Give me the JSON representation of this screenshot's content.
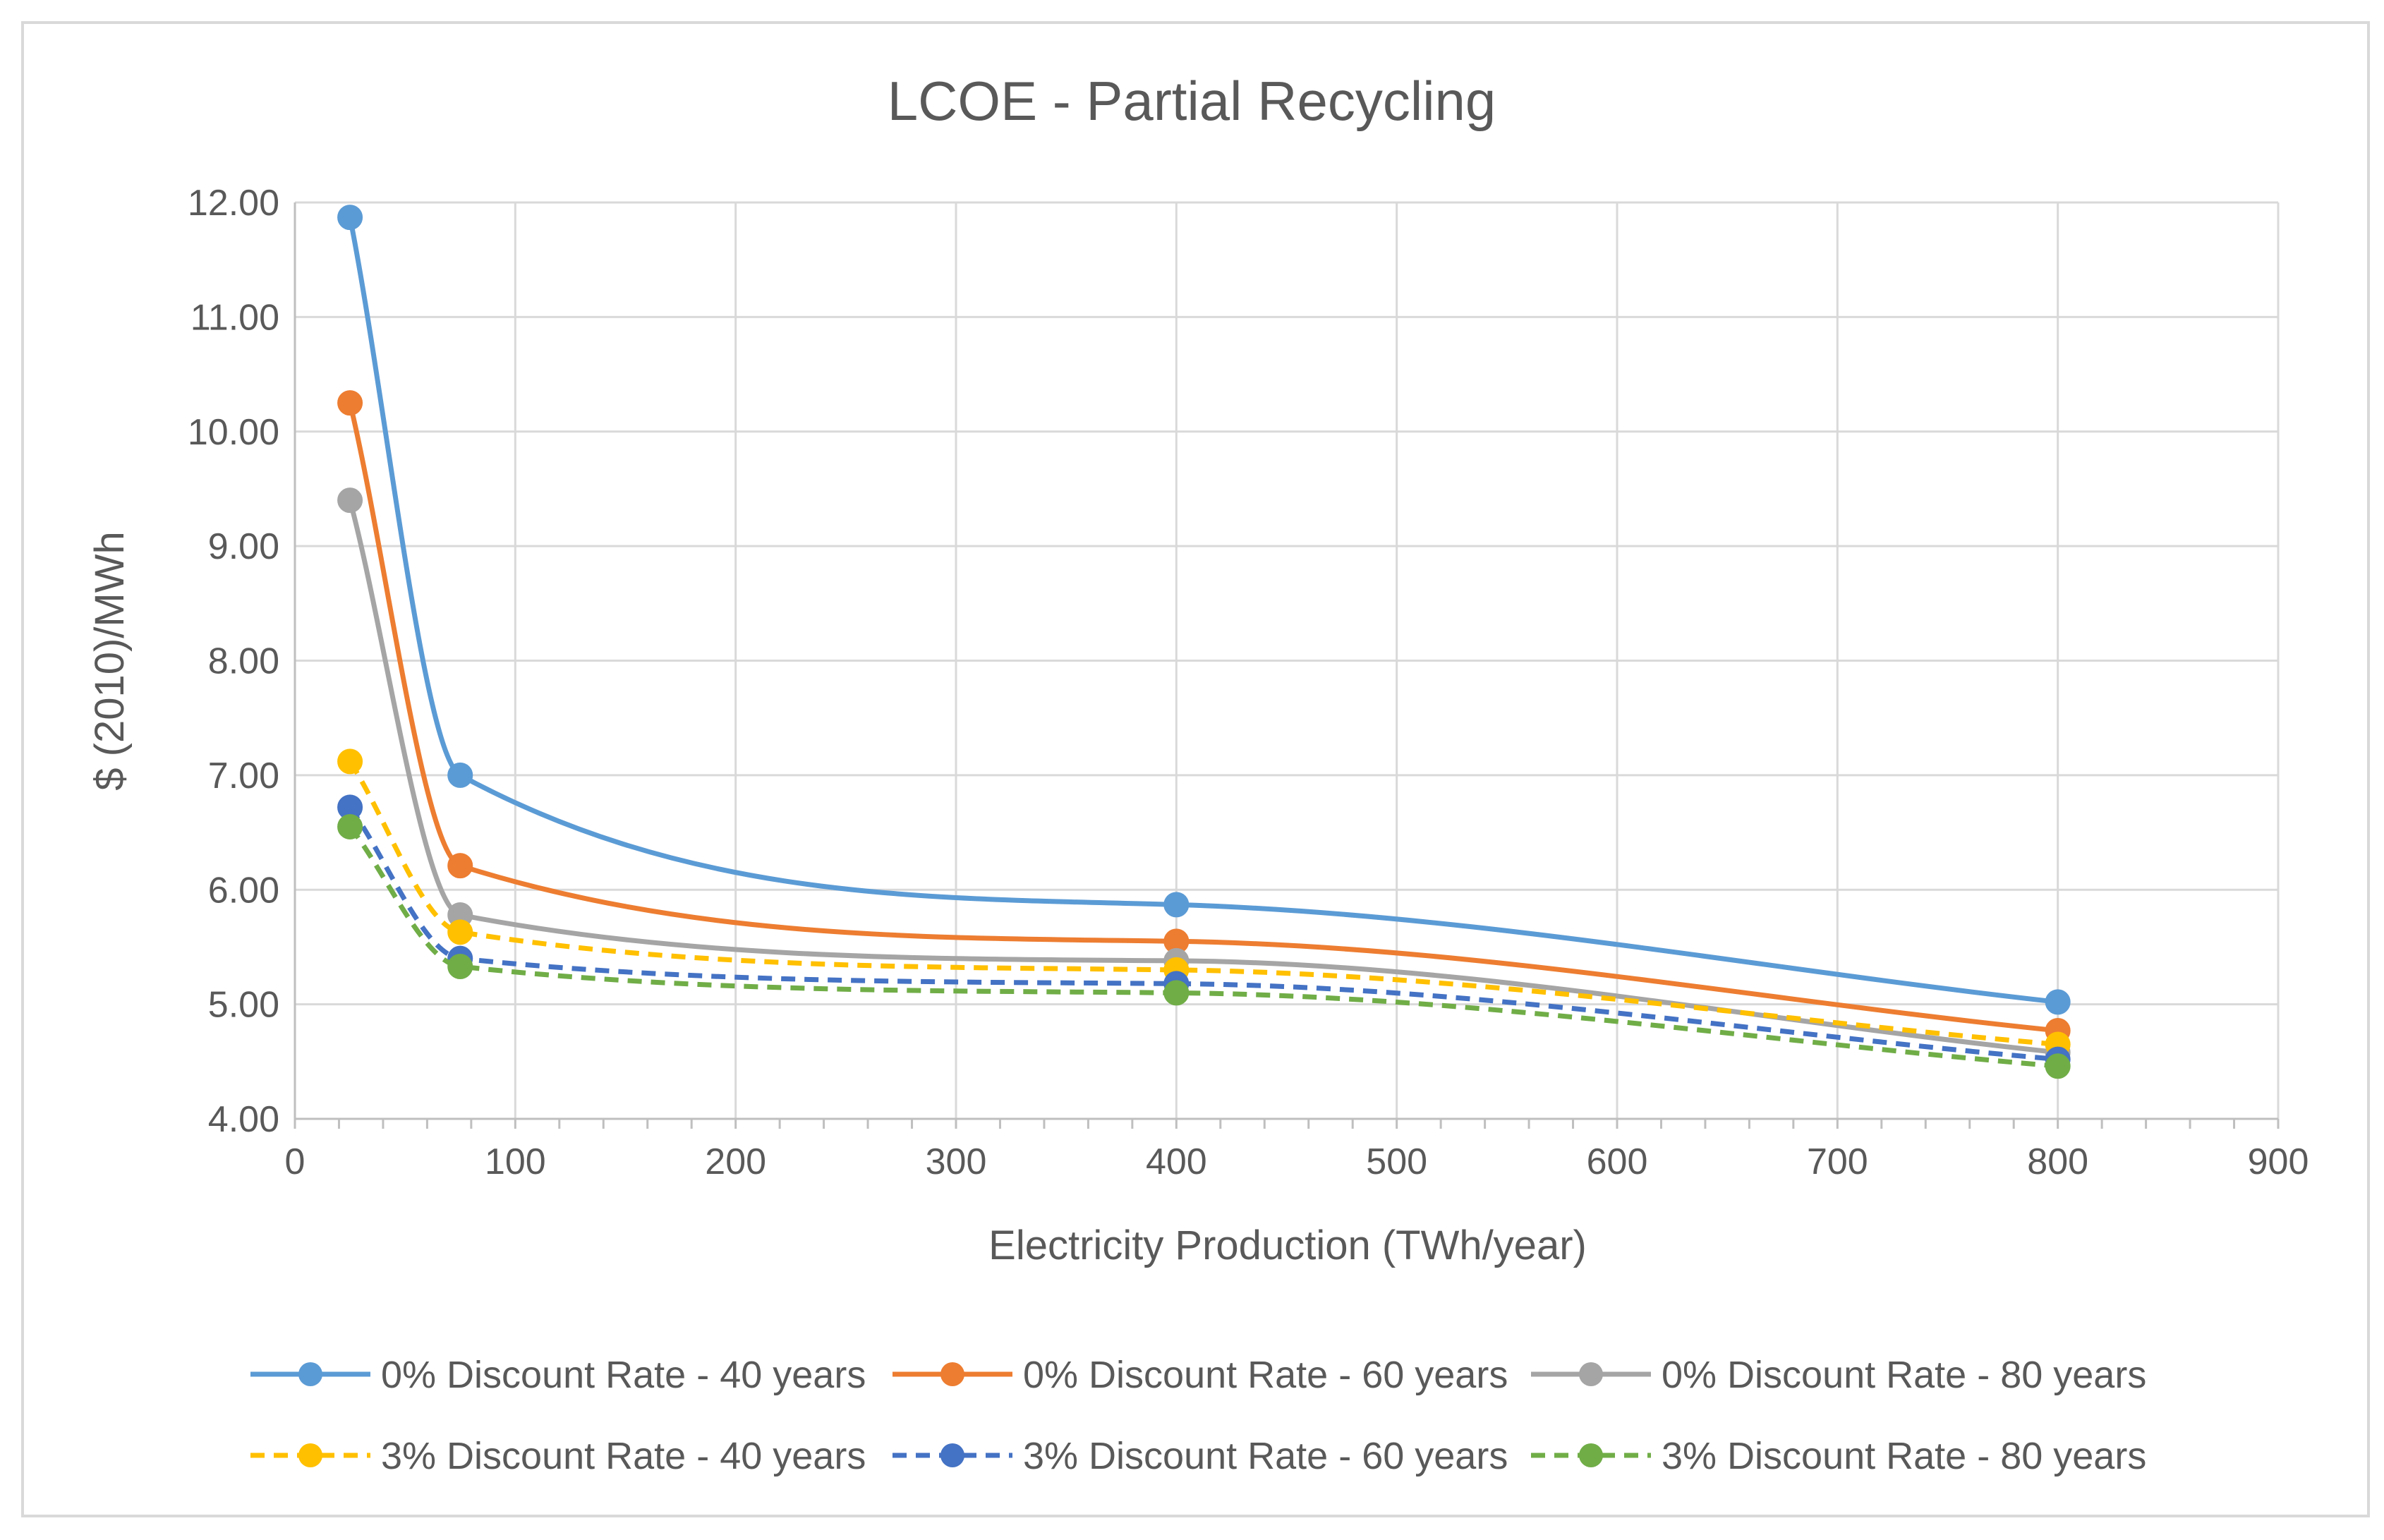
{
  "chart_data": {
    "type": "line",
    "title": "LCOE - Partial Recycling",
    "xlabel": "Electricity Production (TWh/year)",
    "ylabel": "$ (2010)/MWh",
    "xlim": [
      0,
      900
    ],
    "ylim": [
      4.0,
      12.0
    ],
    "x_ticks": [
      0,
      100,
      200,
      300,
      400,
      500,
      600,
      700,
      800,
      900
    ],
    "y_ticks": [
      4.0,
      5.0,
      6.0,
      7.0,
      8.0,
      9.0,
      10.0,
      11.0,
      12.0
    ],
    "y_tick_labels": [
      "4.00",
      "5.00",
      "6.00",
      "7.00",
      "8.00",
      "9.00",
      "10.00",
      "11.00",
      "12.00"
    ],
    "grid": true,
    "legend_position": "bottom",
    "x": [
      25,
      75,
      400,
      800
    ],
    "series": [
      {
        "name": "0% Discount Rate - 40 years",
        "values": [
          11.87,
          7.0,
          5.87,
          5.02
        ],
        "color": "#5B9BD5",
        "dashed": false
      },
      {
        "name": "0% Discount Rate - 60 years",
        "values": [
          10.25,
          6.21,
          5.55,
          4.77
        ],
        "color": "#ED7D31",
        "dashed": false
      },
      {
        "name": "0% Discount Rate - 80 years",
        "values": [
          9.4,
          5.78,
          5.38,
          4.58
        ],
        "color": "#A5A5A5",
        "dashed": false
      },
      {
        "name": "3% Discount Rate - 40 years",
        "values": [
          7.12,
          5.63,
          5.3,
          4.65
        ],
        "color": "#FFC000",
        "dashed": true
      },
      {
        "name": "3% Discount Rate - 60 years",
        "values": [
          6.72,
          5.4,
          5.18,
          4.52
        ],
        "color": "#4472C4",
        "dashed": true
      },
      {
        "name": "3% Discount Rate - 80 years",
        "values": [
          6.55,
          5.33,
          5.1,
          4.46
        ],
        "color": "#70AD47",
        "dashed": true
      }
    ]
  }
}
